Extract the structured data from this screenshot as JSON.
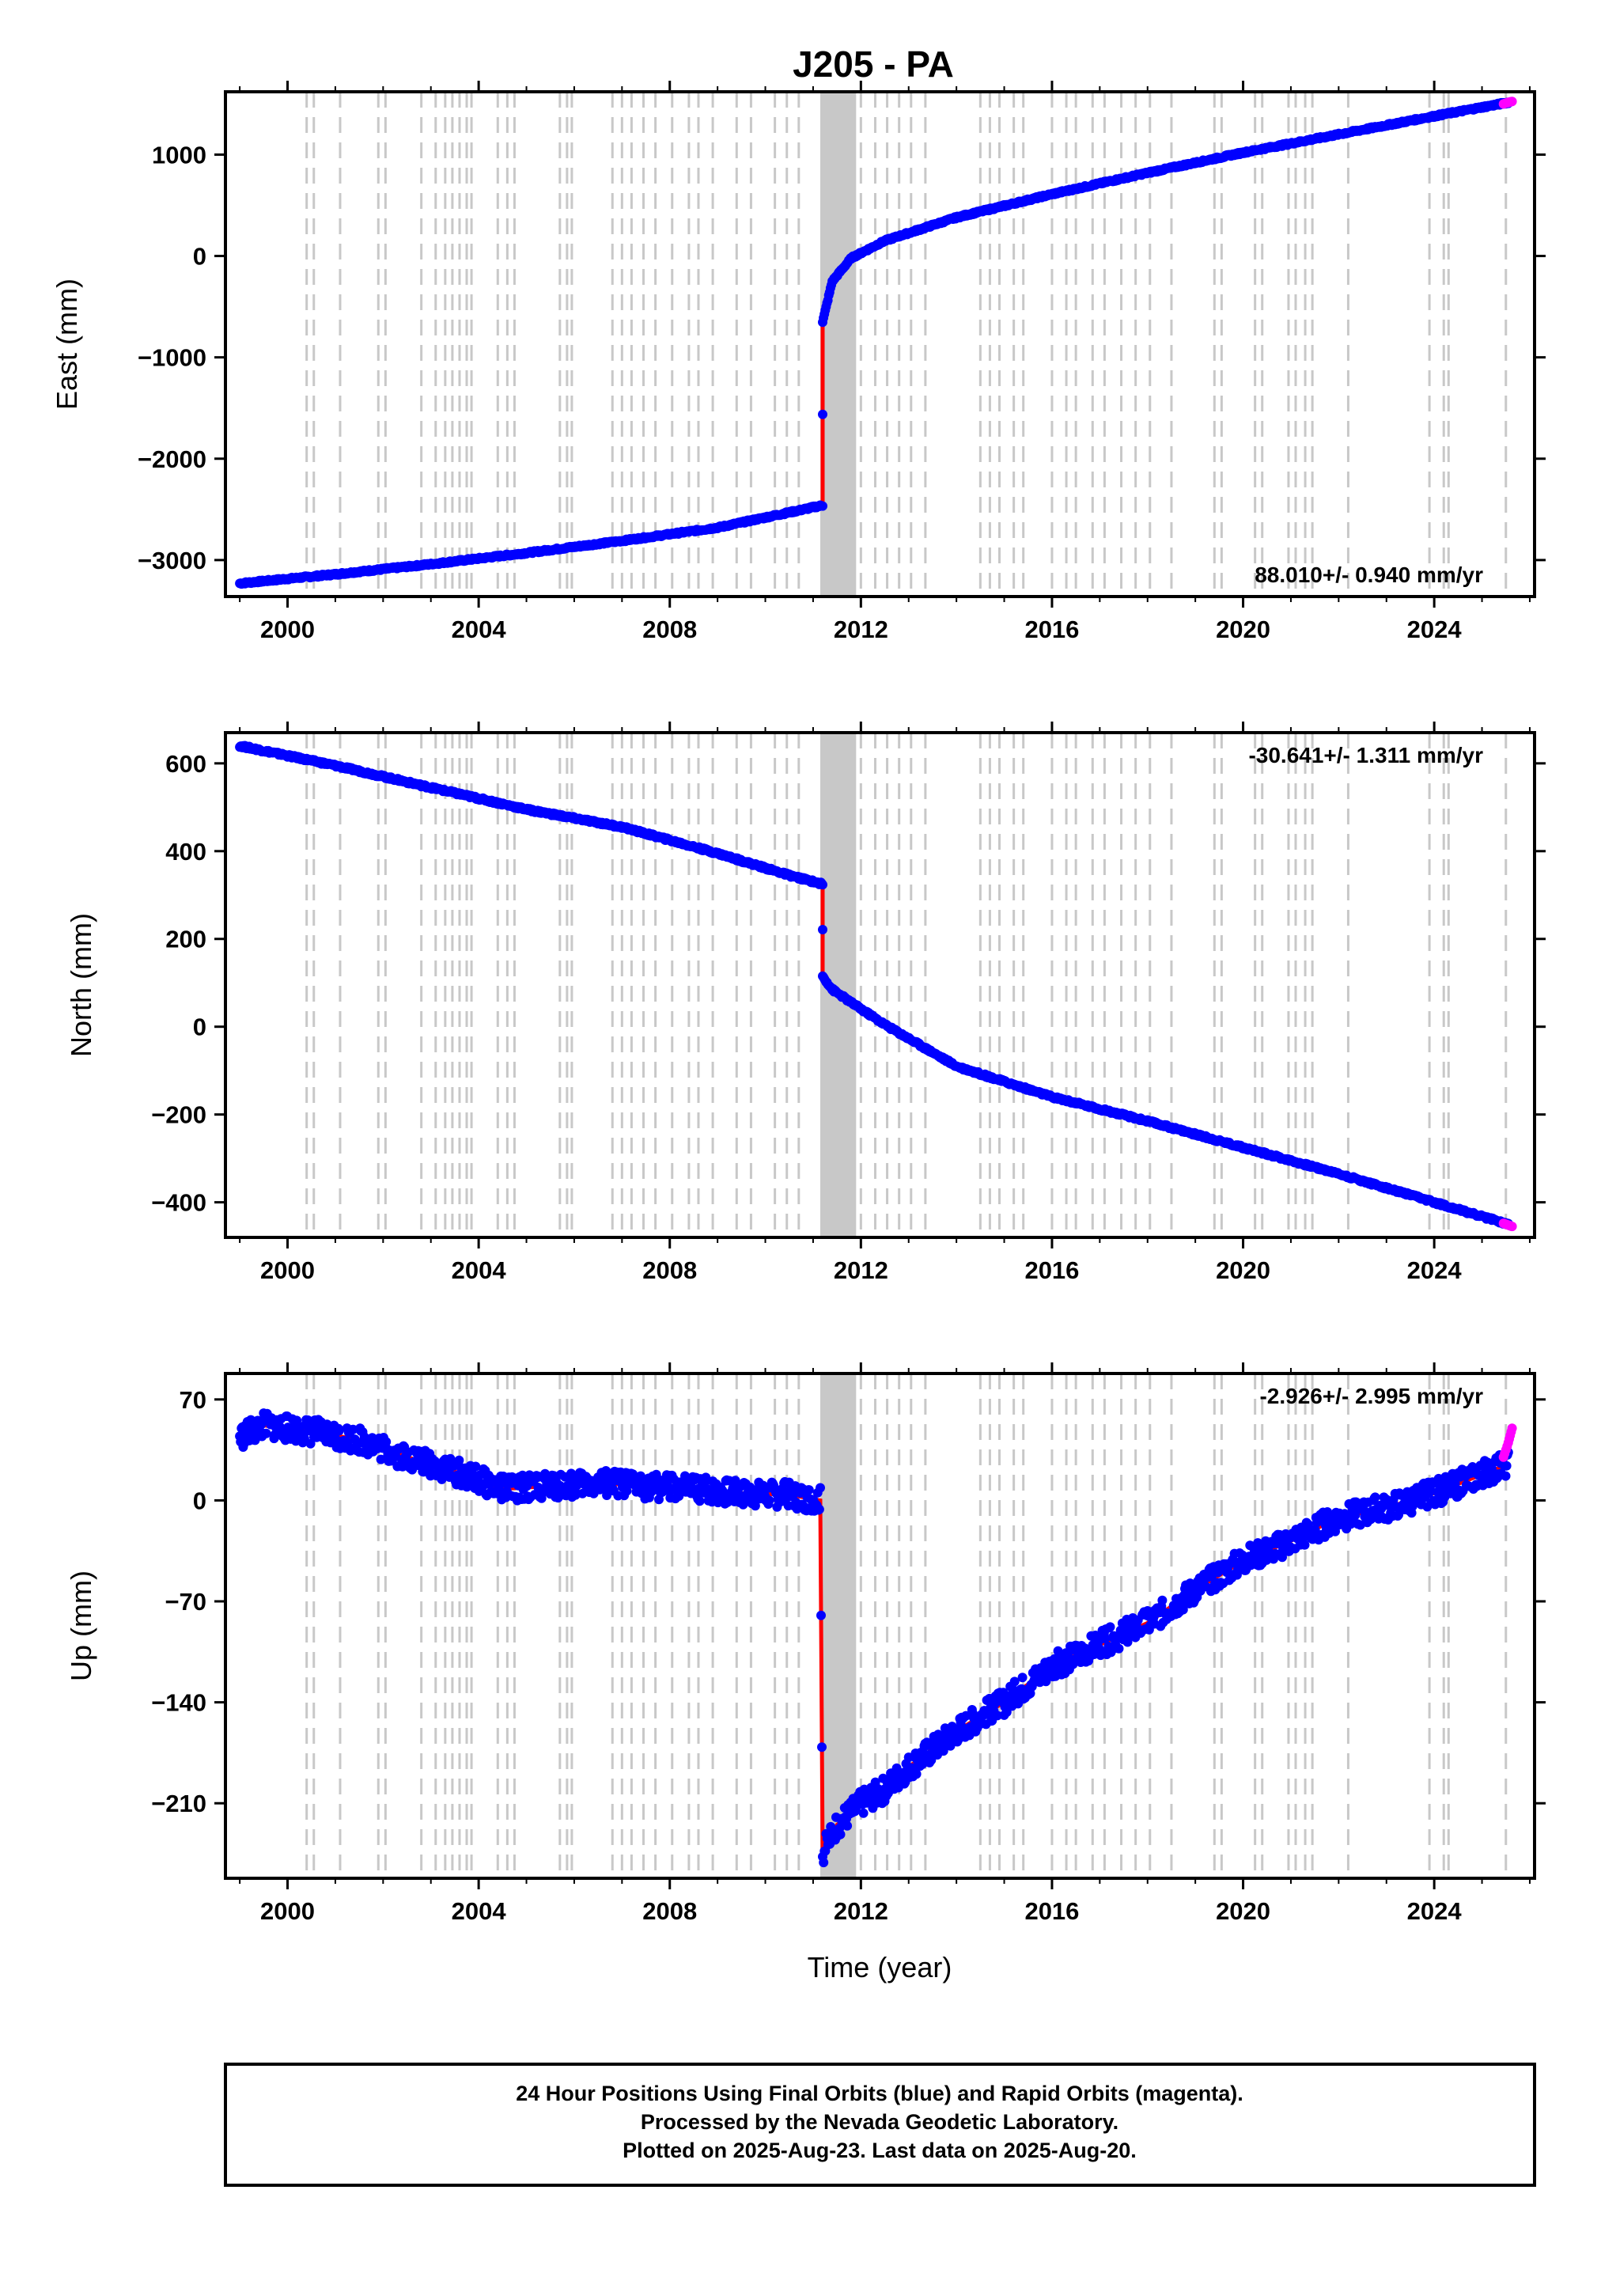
{
  "chart_data": [
    {
      "type": "scatter",
      "title": "J205 - PA",
      "xlabel": "",
      "ylabel": "East (mm)",
      "xlim": [
        1998.7,
        2026.1
      ],
      "ylim": [
        -3360,
        1620
      ],
      "xticks": [
        "2000",
        "2004",
        "2008",
        "2012",
        "2016",
        "2020",
        "2024"
      ],
      "yticks": [
        "-3000",
        "-2000",
        "-1000",
        "0",
        "1000"
      ],
      "rate_text": "88.010+/- 0.940 mm/yr",
      "series": [
        {
          "color": "#0000ff",
          "x": [
            1999.0,
            2001.0,
            2003.0,
            2005.0,
            2007.0,
            2009.0,
            2011.2,
            2011.2,
            2011.4,
            2011.8,
            2012.5,
            2014.0,
            2016.0,
            2018.0,
            2020.0,
            2022.0,
            2024.0,
            2025.55
          ],
          "y": [
            -3230,
            -3140,
            -3040,
            -2930,
            -2810,
            -2680,
            -2460,
            -650,
            -250,
            -20,
            150,
            380,
            610,
            820,
            1020,
            1200,
            1380,
            1515
          ]
        },
        {
          "color": "#ff00ff",
          "x": [
            2025.45,
            2025.55,
            2025.63
          ],
          "y": [
            1500,
            1515,
            1525
          ]
        }
      ]
    },
    {
      "type": "scatter",
      "title": "",
      "xlabel": "",
      "ylabel": "North (mm)",
      "xlim": [
        1998.7,
        2026.1
      ],
      "ylim": [
        -480,
        670
      ],
      "xticks": [
        "2000",
        "2004",
        "2008",
        "2012",
        "2016",
        "2020",
        "2024"
      ],
      "yticks": [
        "-400",
        "-200",
        "0",
        "200",
        "400",
        "600"
      ],
      "rate_text": "-30.641+/- 1.311 mm/yr",
      "series": [
        {
          "color": "#0000ff",
          "x": [
            1999.0,
            2001.0,
            2003.0,
            2005.0,
            2007.0,
            2009.0,
            2010.5,
            2011.2,
            2011.2,
            2011.4,
            2011.8,
            2012.5,
            2014.0,
            2016.0,
            2018.0,
            2020.0,
            2022.0,
            2024.0,
            2025.55
          ],
          "y": [
            640,
            595,
            545,
            495,
            455,
            395,
            345,
            325,
            115,
            85,
            55,
            5,
            -90,
            -160,
            -215,
            -275,
            -335,
            -400,
            -450
          ]
        },
        {
          "color": "#ff00ff",
          "x": [
            2025.45,
            2025.55,
            2025.63
          ],
          "y": [
            -448,
            -452,
            -455
          ]
        }
      ]
    },
    {
      "type": "scatter",
      "title": "",
      "xlabel": "Time (year)",
      "ylabel": "Up (mm)",
      "xlim": [
        1998.7,
        2026.1
      ],
      "ylim": [
        -262,
        88
      ],
      "xticks": [
        "2000",
        "2004",
        "2008",
        "2012",
        "2016",
        "2020",
        "2024"
      ],
      "yticks": [
        "-210",
        "-140",
        "-70",
        "0",
        "70"
      ],
      "rate_text": "-2.926+/- 2.995 mm/yr",
      "series": [
        {
          "color": "#0000ff",
          "x": [
            1999.0,
            1999.5,
            2000.5,
            2001.5,
            2002.5,
            2003.5,
            2004.5,
            2005.5,
            2006.5,
            2007.5,
            2008.5,
            2009.5,
            2010.5,
            2011.15,
            2011.2,
            2011.5,
            2012.0,
            2012.5,
            2013.0,
            2014.0,
            2015.0,
            2016.0,
            2017.0,
            2018.0,
            2019.0,
            2020.0,
            2021.0,
            2022.0,
            2023.0,
            2024.0,
            2025.55
          ],
          "y": [
            44,
            52,
            48,
            42,
            30,
            20,
            8,
            10,
            12,
            10,
            8,
            5,
            4,
            0,
            -245,
            -225,
            -210,
            -200,
            -185,
            -160,
            -140,
            -115,
            -100,
            -85,
            -62,
            -42,
            -28,
            -12,
            -5,
            5,
            25
          ]
        },
        {
          "color": "#ff00ff",
          "x": [
            2025.45,
            2025.55,
            2025.63
          ],
          "y": [
            30,
            40,
            50
          ]
        }
      ]
    }
  ],
  "footer": {
    "line1": "24 Hour Positions Using Final Orbits (blue) and Rapid Orbits (magenta).",
    "line2": "Processed by the Nevada Geodetic Laboratory.",
    "line3": "Plotted on 2025-Aug-23. Last data on 2025-Aug-20."
  },
  "colors": {
    "final_orbits": "#0000ff",
    "rapid_orbits": "#ff00ff",
    "model_fit": "#ff0000",
    "event_lines": "#c8c8c8"
  },
  "event_lines": [
    2000.4,
    2000.55,
    2001.1,
    2001.9,
    2002.05,
    2002.8,
    2003.1,
    2003.3,
    2003.45,
    2003.6,
    2003.75,
    2003.85,
    2004.4,
    2004.6,
    2004.75,
    2005.7,
    2005.85,
    2005.95,
    2006.8,
    2007.0,
    2007.2,
    2007.45,
    2007.7,
    2008.05,
    2008.4,
    2008.6,
    2008.9,
    2009.4,
    2009.7,
    2010.2,
    2010.45,
    2010.7,
    2011.6,
    2011.75,
    2012.0,
    2012.3,
    2012.55,
    2012.8,
    2013.05,
    2013.35,
    2014.5,
    2014.7,
    2014.9,
    2015.2,
    2015.4,
    2016.0,
    2016.3,
    2016.5,
    2016.85,
    2017.1,
    2017.45,
    2017.75,
    2018.05,
    2018.5,
    2019.4,
    2019.55,
    2020.25,
    2020.4,
    2020.95,
    2021.1,
    2021.3,
    2021.45,
    2022.2,
    2023.9,
    2024.2,
    2024.3,
    2025.5
  ],
  "event_band": [
    2011.15,
    2011.9
  ]
}
